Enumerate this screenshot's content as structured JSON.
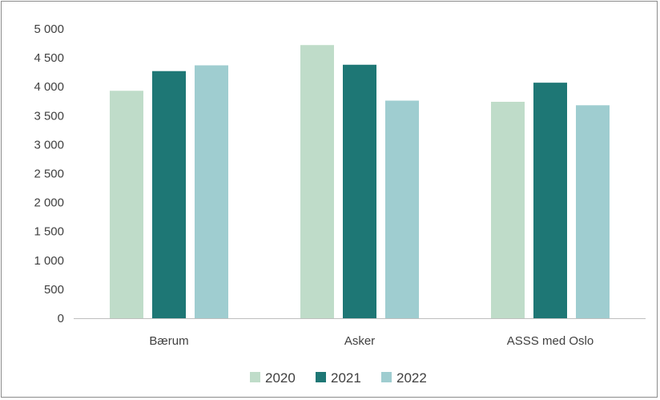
{
  "chart_data": {
    "type": "bar",
    "categories": [
      "Bærum",
      "Asker",
      "ASSS med Oslo"
    ],
    "series": [
      {
        "name": "2020",
        "color": "#bfdcc9",
        "values": [
          3930,
          4720,
          3740
        ]
      },
      {
        "name": "2021",
        "color": "#1e7775",
        "values": [
          4270,
          4380,
          4070
        ]
      },
      {
        "name": "2022",
        "color": "#9fcdd0",
        "values": [
          4370,
          3760,
          3680
        ]
      }
    ],
    "ylim": [
      0,
      5000
    ],
    "yticks": [
      0,
      500,
      1000,
      1500,
      2000,
      2500,
      3000,
      3500,
      4000,
      4500,
      5000
    ],
    "ytick_labels": [
      "0",
      "500",
      "1 000",
      "1 500",
      "2 000",
      "2 500",
      "3 000",
      "3 500",
      "4 000",
      "4 500",
      "5 000"
    ],
    "grid": false,
    "legend_position": "bottom",
    "title": "",
    "xlabel": "",
    "ylabel": ""
  }
}
